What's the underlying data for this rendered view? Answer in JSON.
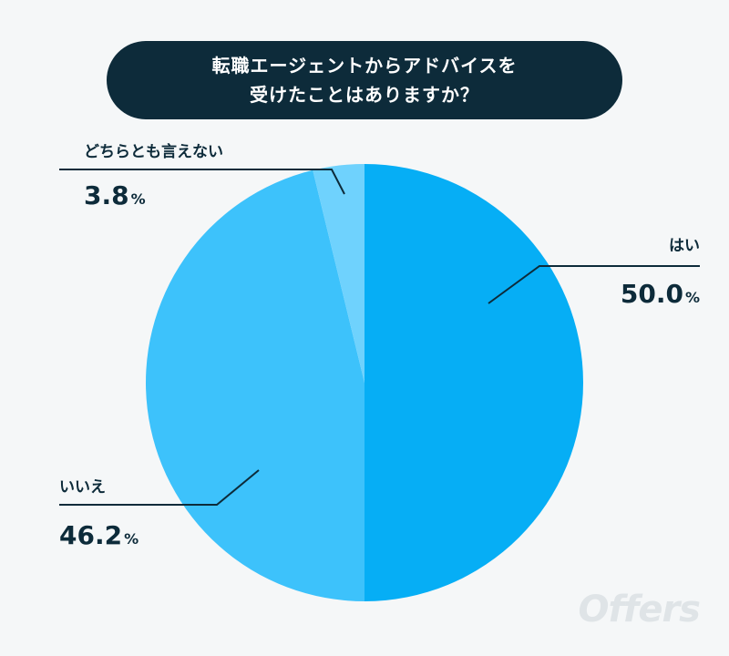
{
  "title_lines": [
    "転職エージェントからアドバイスを",
    "受けたことはありますか？"
  ],
  "colors": {
    "background": "#f5f7f8",
    "title_bg": "#0d2b3a",
    "text": "#0d2b3a",
    "slice_yes": "#06aef5",
    "slice_no": "#3dc2fb",
    "slice_neither": "#6fd2fd"
  },
  "chart_data": {
    "type": "pie",
    "title": "転職エージェントからアドバイスを受けたことはありますか？",
    "slices": [
      {
        "label": "はい",
        "value": 50.0,
        "display": "50.0",
        "unit": "%",
        "color": "#06aef5"
      },
      {
        "label": "いいえ",
        "value": 46.2,
        "display": "46.2",
        "unit": "%",
        "color": "#3dc2fb"
      },
      {
        "label": "どちらとも言えない",
        "value": 3.8,
        "display": "3.8",
        "unit": "%",
        "color": "#6fd2fd"
      }
    ],
    "start": "top",
    "direction": "clockwise",
    "legend": "none",
    "grid": false
  },
  "logo_text": "Offers"
}
